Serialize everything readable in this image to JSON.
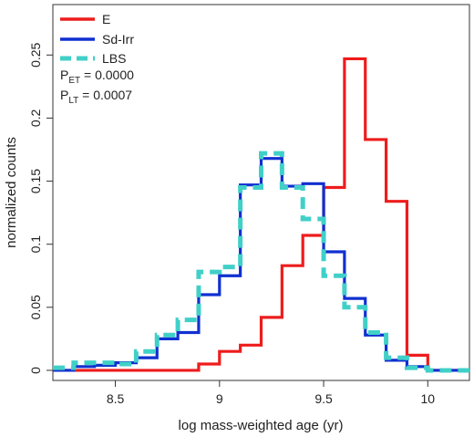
{
  "chart_data": {
    "type": "line",
    "title": "",
    "xlabel": "log mass-weighted age (yr)",
    "ylabel": "normalized counts",
    "xlim": [
      8.2,
      10.2
    ],
    "ylim": [
      -0.008,
      0.29
    ],
    "xticks": [
      8.5,
      9,
      9.5,
      10
    ],
    "xtick_labels": [
      "8.5",
      "9",
      "9.5",
      "10"
    ],
    "yticks": [
      0,
      0.05,
      0.1,
      0.15,
      0.2,
      0.25
    ],
    "ytick_labels": [
      "0",
      "0.05",
      "0.1",
      "0.15",
      "0.2",
      "0.25"
    ],
    "grid": false,
    "legend_position": "top-left",
    "bin_edges": [
      8.2,
      8.3,
      8.4,
      8.5,
      8.6,
      8.7,
      8.8,
      8.9,
      9.0,
      9.1,
      9.2,
      9.3,
      9.4,
      9.5,
      9.6,
      9.7,
      9.8,
      9.9,
      10.0,
      10.1,
      10.2
    ],
    "series": [
      {
        "name": "E",
        "color": "#ee1c1c",
        "style": "solid",
        "values": [
          0.0,
          0.0,
          0.0,
          0.0,
          0.0,
          0.0,
          0.0,
          0.005,
          0.015,
          0.02,
          0.042,
          0.083,
          0.107,
          0.145,
          0.247,
          0.183,
          0.134,
          0.012,
          0.0,
          0.0
        ]
      },
      {
        "name": "Sd-Irr",
        "color": "#1030d0",
        "style": "solid",
        "values": [
          0.0,
          0.003,
          0.004,
          0.006,
          0.01,
          0.025,
          0.03,
          0.06,
          0.075,
          0.147,
          0.168,
          0.146,
          0.148,
          0.094,
          0.057,
          0.028,
          0.008,
          0.003,
          0.0,
          0.0
        ]
      },
      {
        "name": "LBS",
        "color": "#40d0c8",
        "style": "dashed",
        "values": [
          0.002,
          0.006,
          0.006,
          0.005,
          0.015,
          0.028,
          0.04,
          0.078,
          0.082,
          0.145,
          0.172,
          0.145,
          0.12,
          0.075,
          0.05,
          0.03,
          0.01,
          0.002,
          0.0,
          0.0
        ]
      }
    ],
    "annotations": [
      {
        "main": "P",
        "sub": "ET",
        "value": " = 0.0000"
      },
      {
        "main": "P",
        "sub": "LT",
        "value": " = 0.0007"
      }
    ]
  }
}
